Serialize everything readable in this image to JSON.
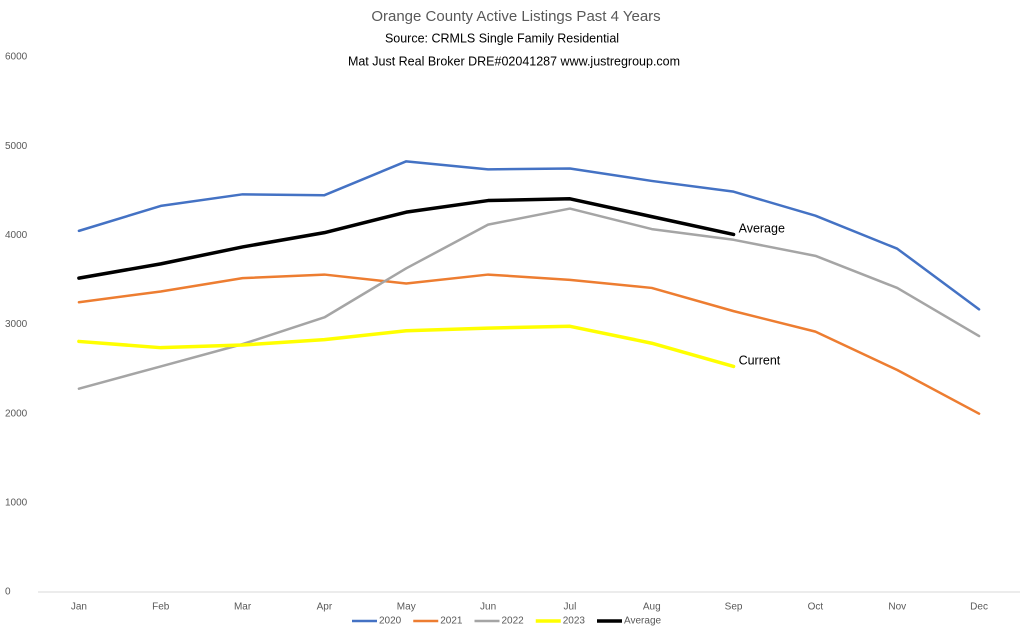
{
  "chart_data": {
    "type": "line",
    "title": "Orange County Active Listings Past 4 Years",
    "subtitles": [
      "Source: CRMLS Single Family Residential",
      "Mat Just Real Broker DRE#02041287  www.justregroup.com"
    ],
    "categories": [
      "Jan",
      "Feb",
      "Mar",
      "Apr",
      "May",
      "Jun",
      "Jul",
      "Aug",
      "Sep",
      "Oct",
      "Nov",
      "Dec"
    ],
    "series": [
      {
        "name": "2020",
        "color": "#4472c4",
        "values": [
          4050,
          4330,
          4460,
          4450,
          4830,
          4740,
          4750,
          4610,
          4490,
          4220,
          3850,
          3170
        ]
      },
      {
        "name": "2021",
        "color": "#ed7d31",
        "values": [
          3250,
          3370,
          3520,
          3560,
          3460,
          3560,
          3500,
          3410,
          3150,
          2920,
          2490,
          2000
        ]
      },
      {
        "name": "2022",
        "color": "#a5a5a5",
        "values": [
          2280,
          2530,
          2780,
          3080,
          3630,
          4120,
          4300,
          4070,
          3950,
          3770,
          3410,
          2870
        ]
      },
      {
        "name": "2023",
        "color": "#ffff00",
        "values": [
          2810,
          2740,
          2770,
          2830,
          2930,
          2960,
          2980,
          2790,
          2530,
          null,
          null,
          null
        ]
      },
      {
        "name": "Average",
        "color": "#000000",
        "values": [
          3520,
          3680,
          3870,
          4030,
          4260,
          4390,
          4410,
          4210,
          4010,
          null,
          null,
          null
        ]
      }
    ],
    "annotations": [
      "Average",
      "Current"
    ],
    "ylim": [
      0,
      6000
    ],
    "yticks": [
      0,
      1000,
      2000,
      3000,
      4000,
      5000,
      6000
    ],
    "grid": false,
    "legend": "bottom"
  }
}
